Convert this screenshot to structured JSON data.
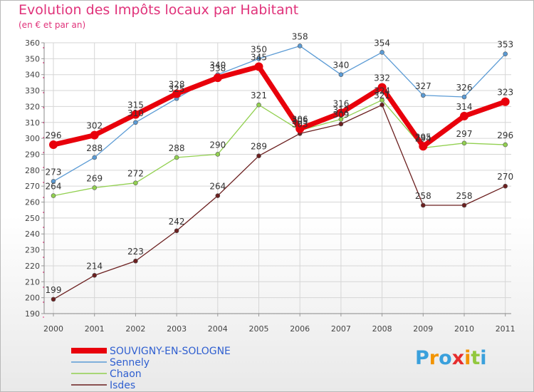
{
  "chart_data": {
    "type": "line",
    "title": "Evolution des Impôts locaux par Habitant",
    "subtitle": "(en € et par an)",
    "xlabel": "",
    "ylabel": "",
    "x": [
      "2000",
      "2001",
      "2002",
      "2003",
      "2004",
      "2005",
      "2006",
      "2007",
      "2008",
      "2009",
      "2010",
      "2011"
    ],
    "ylim": [
      190,
      360
    ],
    "yticks": [
      190,
      200,
      210,
      220,
      230,
      240,
      250,
      260,
      270,
      280,
      290,
      300,
      310,
      320,
      330,
      340,
      350,
      360
    ],
    "grid": true,
    "legend_position": "bottom-left",
    "series": [
      {
        "name": "SOUVIGNY-EN-SOLOGNE",
        "color": "#e8000b",
        "values": [
          296,
          302,
          315,
          328,
          338,
          345,
          306,
          316,
          332,
          295,
          314,
          323
        ]
      },
      {
        "name": "Sennely",
        "color": "#5b9bd5",
        "values": [
          273,
          288,
          310,
          325,
          340,
          350,
          358,
          340,
          354,
          327,
          326,
          353
        ]
      },
      {
        "name": "Chaon",
        "color": "#92d050",
        "values": [
          264,
          269,
          272,
          288,
          290,
          321,
          305,
          312,
          324,
          294,
          297,
          296
        ]
      },
      {
        "name": "Isdes",
        "color": "#6b1f1f",
        "values": [
          199,
          214,
          223,
          242,
          264,
          289,
          303,
          309,
          321,
          258,
          258,
          270
        ]
      }
    ]
  },
  "logo": {
    "letters": [
      "P",
      "r",
      "o",
      "x",
      "i",
      "t",
      "i"
    ],
    "colors": [
      "#3aa0dc",
      "#f29400",
      "#3aa0dc",
      "#e62d2d",
      "#f29400",
      "#92c83e",
      "#3aa0dc"
    ]
  }
}
